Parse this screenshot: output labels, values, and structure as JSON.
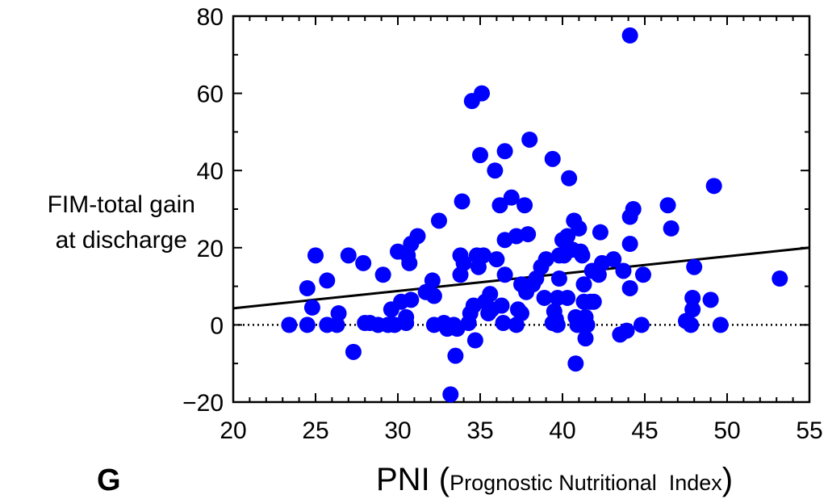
{
  "panel_letter": "G",
  "chart_data": {
    "type": "scatter",
    "ylabel_lines": [
      "FIM-total gain",
      "at discharge"
    ],
    "xlabel_main": "PNI",
    "xlabel_paren_open": " (",
    "xlabel_sub": "Prognostic Nutritional  Index",
    "xlabel_paren_close": ")",
    "xlim": [
      20,
      55
    ],
    "ylim": [
      -20,
      80
    ],
    "xticks": [
      20,
      25,
      30,
      35,
      40,
      45,
      50,
      55
    ],
    "yticks": [
      -20,
      0,
      20,
      40,
      60,
      80
    ],
    "ytick_labels": [
      "−20",
      "0",
      "20",
      "40",
      "60",
      "80"
    ],
    "point_color": "#0000ff",
    "reference_line_y": 0,
    "regression_line": {
      "x": [
        20,
        55
      ],
      "y": [
        4.3,
        20.0
      ]
    },
    "points": [
      {
        "x": 23.4,
        "y": 0
      },
      {
        "x": 24.5,
        "y": 9.5
      },
      {
        "x": 24.5,
        "y": 0
      },
      {
        "x": 24.8,
        "y": 4.5
      },
      {
        "x": 25.0,
        "y": 18
      },
      {
        "x": 25.7,
        "y": 11.5
      },
      {
        "x": 25.7,
        "y": 0
      },
      {
        "x": 26.3,
        "y": 0
      },
      {
        "x": 26.4,
        "y": 3
      },
      {
        "x": 27.0,
        "y": 18
      },
      {
        "x": 27.3,
        "y": -7
      },
      {
        "x": 27.9,
        "y": 16
      },
      {
        "x": 28.0,
        "y": 0.5
      },
      {
        "x": 28.3,
        "y": 0.5
      },
      {
        "x": 28.8,
        "y": 0
      },
      {
        "x": 29.1,
        "y": 13
      },
      {
        "x": 29.4,
        "y": 0
      },
      {
        "x": 29.6,
        "y": 4
      },
      {
        "x": 29.8,
        "y": 0
      },
      {
        "x": 30.0,
        "y": 19
      },
      {
        "x": 30.2,
        "y": 6
      },
      {
        "x": 30.5,
        "y": 2
      },
      {
        "x": 30.5,
        "y": 0.5
      },
      {
        "x": 30.6,
        "y": 18
      },
      {
        "x": 30.7,
        "y": 16
      },
      {
        "x": 30.8,
        "y": 6.5
      },
      {
        "x": 30.8,
        "y": 21
      },
      {
        "x": 31.2,
        "y": 23
      },
      {
        "x": 31.7,
        "y": 8.5
      },
      {
        "x": 32.1,
        "y": 11.5
      },
      {
        "x": 32.2,
        "y": 7.5
      },
      {
        "x": 32.2,
        "y": 0
      },
      {
        "x": 32.5,
        "y": 27
      },
      {
        "x": 32.8,
        "y": 0.5
      },
      {
        "x": 33.0,
        "y": -1
      },
      {
        "x": 33.2,
        "y": -18
      },
      {
        "x": 33.4,
        "y": 0
      },
      {
        "x": 33.5,
        "y": -8
      },
      {
        "x": 33.6,
        "y": -1
      },
      {
        "x": 33.8,
        "y": 18
      },
      {
        "x": 33.8,
        "y": 13
      },
      {
        "x": 33.9,
        "y": 32
      },
      {
        "x": 34.0,
        "y": 16
      },
      {
        "x": 34.3,
        "y": 0.5
      },
      {
        "x": 34.4,
        "y": 3
      },
      {
        "x": 34.5,
        "y": 58
      },
      {
        "x": 34.6,
        "y": 5
      },
      {
        "x": 34.7,
        "y": -4
      },
      {
        "x": 34.8,
        "y": 18
      },
      {
        "x": 34.9,
        "y": 15
      },
      {
        "x": 35.0,
        "y": 44
      },
      {
        "x": 35.1,
        "y": 60
      },
      {
        "x": 35.2,
        "y": 18
      },
      {
        "x": 35.3,
        "y": 6
      },
      {
        "x": 35.5,
        "y": 3
      },
      {
        "x": 35.6,
        "y": 8
      },
      {
        "x": 35.7,
        "y": 4
      },
      {
        "x": 35.9,
        "y": 40
      },
      {
        "x": 36.0,
        "y": 17
      },
      {
        "x": 36.2,
        "y": 31
      },
      {
        "x": 36.3,
        "y": 5
      },
      {
        "x": 36.4,
        "y": 0.5
      },
      {
        "x": 36.5,
        "y": 22
      },
      {
        "x": 36.5,
        "y": 13
      },
      {
        "x": 36.5,
        "y": 45
      },
      {
        "x": 36.9,
        "y": 33
      },
      {
        "x": 37.2,
        "y": 23
      },
      {
        "x": 37.2,
        "y": 0
      },
      {
        "x": 37.3,
        "y": 4
      },
      {
        "x": 37.5,
        "y": 3
      },
      {
        "x": 37.5,
        "y": 10.5
      },
      {
        "x": 37.7,
        "y": 31
      },
      {
        "x": 37.8,
        "y": 8.5
      },
      {
        "x": 37.9,
        "y": 23.5
      },
      {
        "x": 38.0,
        "y": 48
      },
      {
        "x": 38.2,
        "y": 10.5
      },
      {
        "x": 38.4,
        "y": 12
      },
      {
        "x": 38.7,
        "y": 15
      },
      {
        "x": 38.9,
        "y": 7
      },
      {
        "x": 39.0,
        "y": 17
      },
      {
        "x": 39.4,
        "y": 43
      },
      {
        "x": 39.4,
        "y": 0.5
      },
      {
        "x": 39.5,
        "y": 3.5
      },
      {
        "x": 39.6,
        "y": 1.5
      },
      {
        "x": 39.7,
        "y": 7
      },
      {
        "x": 39.7,
        "y": 0
      },
      {
        "x": 39.8,
        "y": 12
      },
      {
        "x": 39.8,
        "y": 18
      },
      {
        "x": 40.0,
        "y": 22
      },
      {
        "x": 40.1,
        "y": 18
      },
      {
        "x": 40.3,
        "y": 7
      },
      {
        "x": 40.3,
        "y": 23
      },
      {
        "x": 40.4,
        "y": 38
      },
      {
        "x": 40.6,
        "y": 19.5
      },
      {
        "x": 40.7,
        "y": 27
      },
      {
        "x": 40.8,
        "y": 2
      },
      {
        "x": 40.8,
        "y": -10
      },
      {
        "x": 40.9,
        "y": 0
      },
      {
        "x": 41.0,
        "y": 25
      },
      {
        "x": 41.1,
        "y": 19
      },
      {
        "x": 41.2,
        "y": 18
      },
      {
        "x": 41.3,
        "y": 10.5
      },
      {
        "x": 41.3,
        "y": 6
      },
      {
        "x": 41.4,
        "y": 2
      },
      {
        "x": 41.4,
        "y": -3.5
      },
      {
        "x": 41.5,
        "y": 0
      },
      {
        "x": 41.7,
        "y": 6
      },
      {
        "x": 41.8,
        "y": 14
      },
      {
        "x": 41.9,
        "y": 6
      },
      {
        "x": 42.2,
        "y": 13
      },
      {
        "x": 42.3,
        "y": 24
      },
      {
        "x": 42.4,
        "y": 16
      },
      {
        "x": 43.1,
        "y": 17
      },
      {
        "x": 43.5,
        "y": -2.5
      },
      {
        "x": 43.7,
        "y": 14
      },
      {
        "x": 43.9,
        "y": -1.5
      },
      {
        "x": 44.1,
        "y": 75
      },
      {
        "x": 44.1,
        "y": 21
      },
      {
        "x": 44.1,
        "y": 28
      },
      {
        "x": 44.1,
        "y": 9.5
      },
      {
        "x": 44.3,
        "y": 30
      },
      {
        "x": 44.8,
        "y": 0
      },
      {
        "x": 44.9,
        "y": 13
      },
      {
        "x": 46.4,
        "y": 31
      },
      {
        "x": 46.6,
        "y": 25
      },
      {
        "x": 47.5,
        "y": 1
      },
      {
        "x": 47.8,
        "y": 0
      },
      {
        "x": 47.9,
        "y": 4
      },
      {
        "x": 47.9,
        "y": 7
      },
      {
        "x": 48.0,
        "y": 15
      },
      {
        "x": 49.0,
        "y": 6.5
      },
      {
        "x": 49.2,
        "y": 36
      },
      {
        "x": 49.6,
        "y": 0
      },
      {
        "x": 53.2,
        "y": 12
      }
    ]
  }
}
